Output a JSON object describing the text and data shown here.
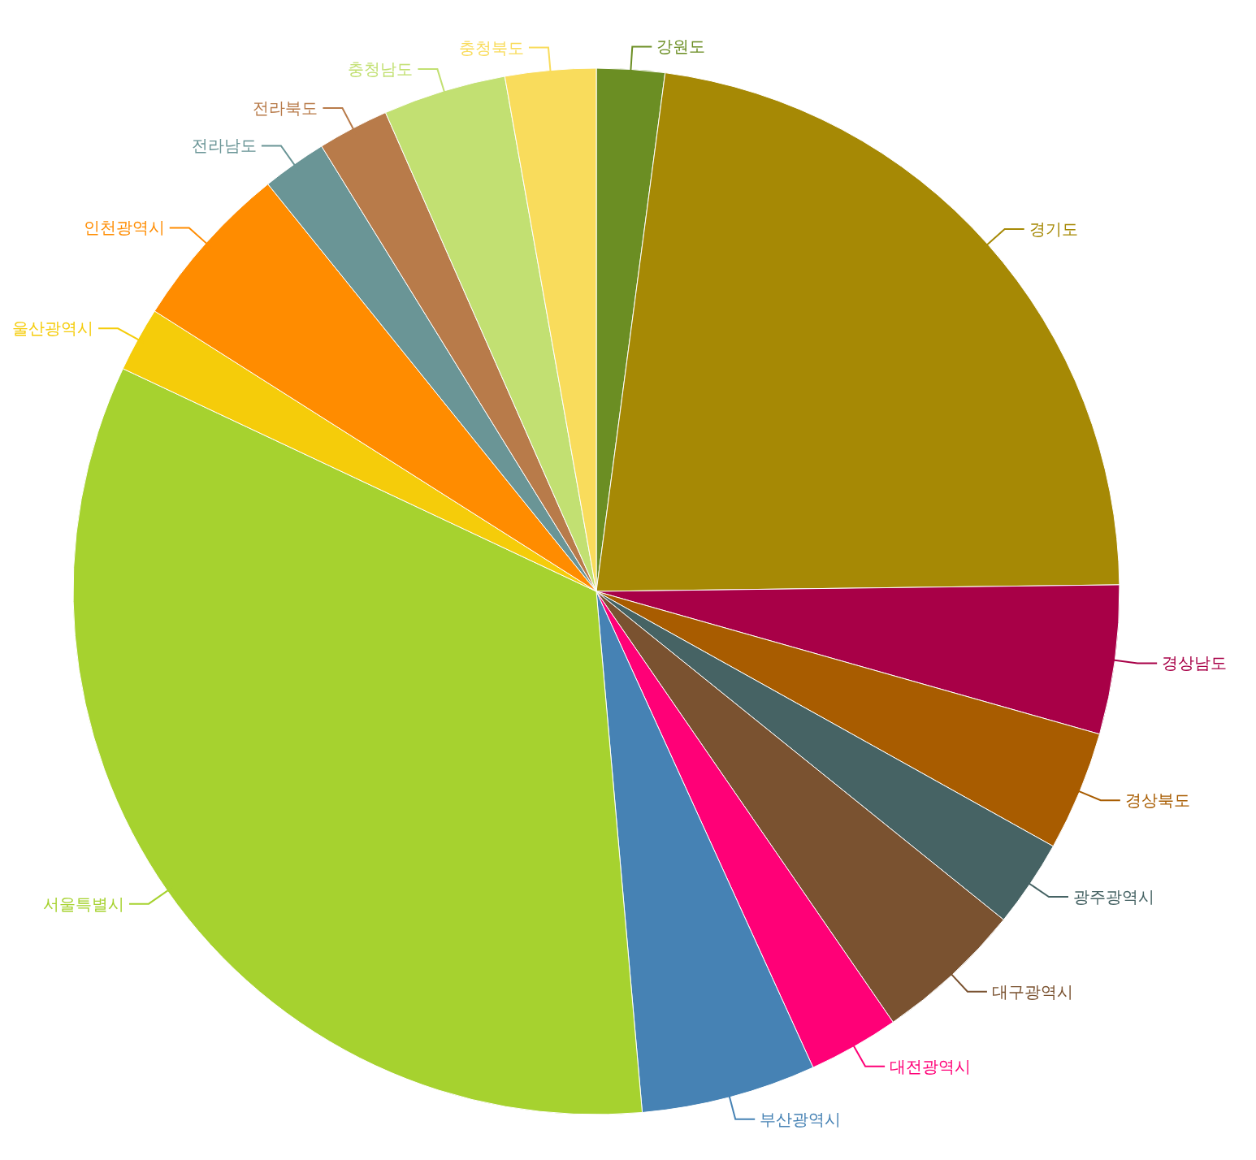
{
  "chart_data": {
    "type": "pie",
    "categories": [
      "강원도",
      "경기도",
      "경상남도",
      "경상북도",
      "광주광역시",
      "대구광역시",
      "대전광역시",
      "부산광역시",
      "서울특별시",
      "울산광역시",
      "인천광역시",
      "전라남도",
      "전라북도",
      "충청남도",
      "충청북도"
    ],
    "values": [
      2.1,
      22.7,
      4.6,
      3.7,
      2.7,
      4.6,
      2.8,
      5.4,
      33.4,
      2.0,
      5.2,
      2.0,
      2.2,
      3.8,
      2.8
    ],
    "colors": [
      "#6b8e23",
      "#a68905",
      "#a80047",
      "#a85c00",
      "#466364",
      "#7a5230",
      "#ff0077",
      "#4682b4",
      "#a6d22f",
      "#f5cc0a",
      "#ff8c00",
      "#6a9596",
      "#b87b4a",
      "#c2e072",
      "#f9dc5c"
    ],
    "legend": false
  }
}
